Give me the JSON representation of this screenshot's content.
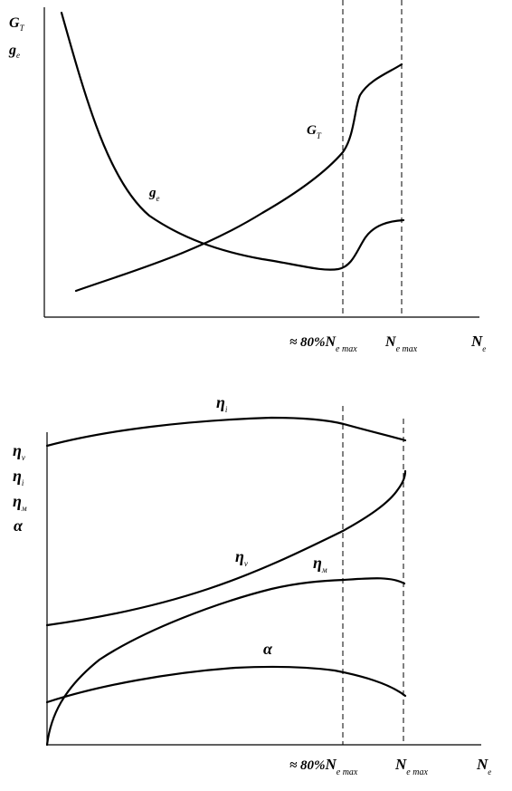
{
  "chart_data": [
    {
      "type": "line",
      "ylabel_parts": [
        {
          "main": "G",
          "sub": "T"
        },
        {
          "main": "g",
          "sub": "e"
        }
      ],
      "xlabel": {
        "main": "N",
        "sub": "e"
      },
      "xticks": [
        {
          "pre": "≈ 80%",
          "main": "N",
          "sub": "e max"
        },
        {
          "pre": "",
          "main": "N",
          "sub": "e max"
        }
      ],
      "series": [
        {
          "name": {
            "main": "G",
            "sub": "T"
          }
        },
        {
          "name": {
            "main": "g",
            "sub": "e"
          }
        }
      ],
      "grid": false
    },
    {
      "type": "line",
      "ylabel_parts": [
        {
          "main": "η",
          "sub": "v"
        },
        {
          "main": "η",
          "sub": "i"
        },
        {
          "main": "η",
          "sub": "м"
        },
        {
          "main": "α",
          "sub": ""
        }
      ],
      "xlabel": {
        "main": "N",
        "sub": "e"
      },
      "xticks": [
        {
          "pre": "≈ 80%",
          "main": "N",
          "sub": "e max"
        },
        {
          "pre": "",
          "main": "N",
          "sub": "e max"
        }
      ],
      "series": [
        {
          "name": {
            "main": "η",
            "sub": "i"
          }
        },
        {
          "name": {
            "main": "η",
            "sub": "v"
          }
        },
        {
          "name": {
            "main": "η",
            "sub": "м"
          }
        },
        {
          "name": {
            "main": "α",
            "sub": ""
          }
        }
      ],
      "grid": false
    }
  ]
}
